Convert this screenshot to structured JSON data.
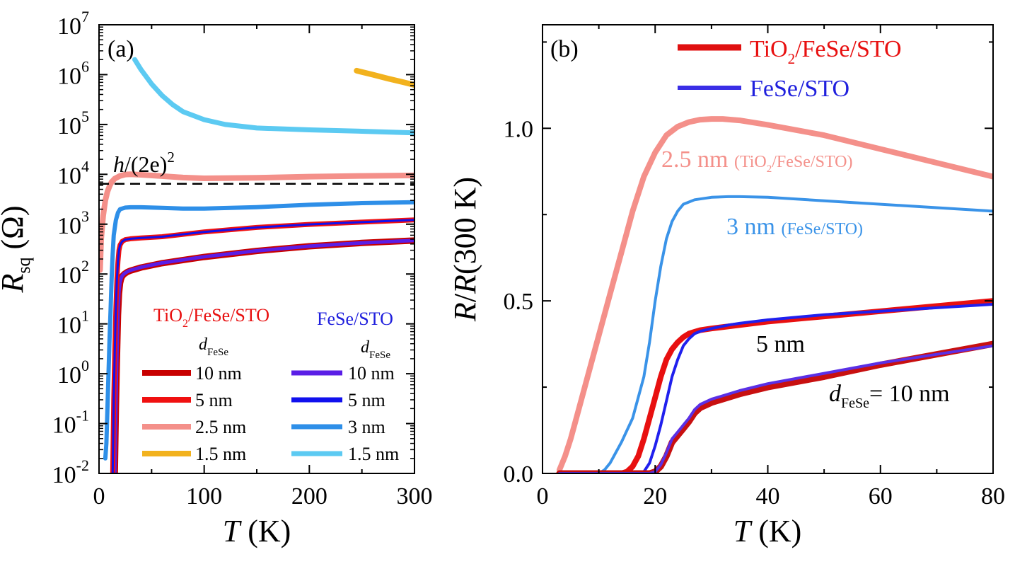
{
  "chart_data": [
    {
      "type": "line",
      "panel": "(a)",
      "xlabel": "T (K)",
      "ylabel": "R_sq (Ω)",
      "xlim": [
        0,
        300
      ],
      "ylim_log10": [
        -2,
        7
      ],
      "yscale": "log",
      "xticks": [
        0,
        100,
        200,
        300
      ],
      "yticks_exp": [
        -2,
        -1,
        0,
        1,
        2,
        3,
        4,
        5,
        6,
        7
      ],
      "reference_line": {
        "label": "h/(2e)^2",
        "value": 6450,
        "style": "dashed"
      },
      "legend": {
        "group_left_title": "TiO2/FeSe/STO",
        "group_right_title": "FeSe/STO",
        "subtitle": "d_FeSe",
        "left": [
          "10 nm",
          "5 nm",
          "2.5 nm",
          "1.5 nm"
        ],
        "right": [
          "10 nm",
          "5 nm",
          "3 nm",
          "1.5 nm"
        ]
      },
      "series": [
        {
          "name": "TiO2/FeSe/STO 10 nm",
          "color": "#c80000",
          "width": 9,
          "x": [
            15,
            16,
            17,
            18,
            19,
            20,
            21,
            22,
            24,
            27,
            30,
            40,
            60,
            100,
            150,
            200,
            250,
            300
          ],
          "y": [
            0.01,
            0.2,
            2,
            15,
            40,
            65,
            80,
            90,
            100,
            110,
            117,
            135,
            165,
            220,
            290,
            360,
            420,
            470
          ]
        },
        {
          "name": "FeSe/STO 10 nm",
          "color": "#5a1ee6",
          "width": 5,
          "x": [
            15,
            16,
            17,
            18,
            19,
            20,
            21,
            22,
            24,
            27,
            30,
            40,
            60,
            100,
            150,
            200,
            250,
            300
          ],
          "y": [
            0.01,
            0.25,
            2.5,
            17,
            45,
            68,
            82,
            92,
            102,
            112,
            119,
            137,
            167,
            222,
            292,
            362,
            422,
            472
          ]
        },
        {
          "name": "TiO2/FeSe/STO 5 nm",
          "color": "#f01010",
          "width": 7,
          "x": [
            13,
            14,
            15,
            16,
            17,
            18,
            19,
            20,
            22,
            25,
            30,
            40,
            60,
            100,
            150,
            200,
            250,
            300
          ],
          "y": [
            0.01,
            0.3,
            3,
            20,
            80,
            180,
            300,
            380,
            450,
            490,
            510,
            530,
            560,
            700,
            860,
            990,
            1100,
            1220
          ]
        },
        {
          "name": "FeSe/STO 5 nm",
          "color": "#1010ee",
          "width": 3,
          "x": [
            13,
            14,
            15,
            16,
            17,
            18,
            19,
            20,
            22,
            25,
            30,
            40,
            60,
            100,
            150,
            200,
            250,
            300
          ],
          "y": [
            0.01,
            0.3,
            3,
            20,
            80,
            180,
            300,
            380,
            450,
            490,
            510,
            530,
            560,
            700,
            860,
            990,
            1100,
            1220
          ]
        },
        {
          "name": "TiO2/FeSe/STO 2.5 nm",
          "color": "#f4908a",
          "width": 8,
          "x": [
            1,
            2,
            4,
            6,
            8,
            10,
            12,
            15,
            20,
            25,
            30,
            40,
            60,
            80,
            100,
            150,
            200,
            250,
            300
          ],
          "y": [
            120,
            500,
            1500,
            3000,
            4500,
            5800,
            7000,
            8200,
            9300,
            9900,
            10000,
            9800,
            9200,
            8600,
            8300,
            8500,
            9000,
            9300,
            9500
          ]
        },
        {
          "name": "FeSe/STO 3 nm",
          "color": "#2e8fe8",
          "width": 6,
          "x": [
            6,
            7,
            8,
            9,
            10,
            11,
            12,
            13,
            14,
            16,
            18,
            20,
            25,
            30,
            40,
            60,
            80,
            100,
            150,
            200,
            250,
            300
          ],
          "y": [
            0.02,
            0.04,
            0.2,
            1,
            5,
            20,
            80,
            250,
            600,
            1200,
            1700,
            2000,
            2150,
            2180,
            2180,
            2120,
            2050,
            2050,
            2200,
            2450,
            2650,
            2750
          ]
        },
        {
          "name": "FeSe/STO 1.5 nm",
          "color": "#5ccaf2",
          "width": 7,
          "x": [
            34,
            40,
            50,
            60,
            70,
            80,
            100,
            120,
            150,
            200,
            250,
            300
          ],
          "y": [
            2000000,
            1250000,
            650000,
            380000,
            250000,
            180000,
            125000,
            100000,
            85000,
            78000,
            73000,
            68000
          ]
        },
        {
          "name": "TiO2/FeSe/STO 1.5 nm",
          "color": "#f2b21e",
          "width": 8,
          "x": [
            245,
            260,
            275,
            290,
            300
          ],
          "y": [
            1200000,
            1000000,
            830000,
            700000,
            620000
          ]
        }
      ]
    },
    {
      "type": "line",
      "panel": "(b)",
      "xlabel": "T (K)",
      "ylabel": "R/R(300 K)",
      "xlim": [
        0,
        80
      ],
      "ylim": [
        0,
        1.3
      ],
      "xticks": [
        0,
        20,
        40,
        60,
        80
      ],
      "yticks": [
        0.0,
        0.5,
        1.0
      ],
      "legend": [
        "TiO2/FeSe/STO",
        "FeSe/STO"
      ],
      "legend_colors": [
        "#e01010",
        "#3a2ee6"
      ],
      "annotations": [
        {
          "text": "2.5 nm",
          "small": "(TiO2/FeSe/STO)"
        },
        {
          "text": "3 nm",
          "small": "(FeSe/STO)"
        },
        {
          "text": "5 nm"
        },
        {
          "text": "d_FeSe = 10 nm"
        }
      ],
      "series": [
        {
          "name": "TiO2/FeSe/STO 2.5 nm",
          "color": "#f4908a",
          "width": 8,
          "x": [
            3,
            4,
            5,
            6,
            8,
            10,
            12,
            14,
            16,
            18,
            20,
            22,
            24,
            26,
            28,
            30,
            32,
            35,
            40,
            50,
            60,
            70,
            80
          ],
          "y": [
            0.01,
            0.05,
            0.1,
            0.16,
            0.28,
            0.4,
            0.52,
            0.64,
            0.76,
            0.86,
            0.93,
            0.98,
            1.005,
            1.018,
            1.025,
            1.027,
            1.027,
            1.023,
            1.01,
            0.98,
            0.94,
            0.9,
            0.86
          ]
        },
        {
          "name": "FeSe/STO 3 nm",
          "color": "#3a93e8",
          "width": 4,
          "x": [
            3,
            10,
            11,
            12,
            14,
            16,
            18,
            19,
            20,
            21,
            22,
            23,
            24,
            25,
            27,
            30,
            33,
            35,
            40,
            50,
            60,
            70,
            80
          ],
          "y": [
            0,
            0,
            0.01,
            0.03,
            0.09,
            0.16,
            0.28,
            0.38,
            0.5,
            0.6,
            0.68,
            0.73,
            0.76,
            0.78,
            0.793,
            0.8,
            0.802,
            0.802,
            0.8,
            0.79,
            0.78,
            0.77,
            0.76
          ]
        },
        {
          "name": "TiO2/FeSe/STO 5 nm",
          "color": "#e81010",
          "width": 8,
          "x": [
            3,
            14,
            15,
            16,
            17,
            18,
            19,
            20,
            21,
            22,
            23,
            24,
            25,
            26,
            27,
            28,
            30,
            35,
            40,
            50,
            60,
            70,
            80
          ],
          "y": [
            0,
            0,
            0.005,
            0.02,
            0.05,
            0.1,
            0.16,
            0.22,
            0.28,
            0.33,
            0.36,
            0.38,
            0.395,
            0.405,
            0.41,
            0.415,
            0.42,
            0.43,
            0.44,
            0.455,
            0.47,
            0.485,
            0.5
          ]
        },
        {
          "name": "FeSe/STO 5 nm",
          "color": "#2020ee",
          "width": 4,
          "x": [
            3,
            17,
            18,
            19,
            20,
            21,
            22,
            23,
            24,
            25,
            26,
            27,
            28,
            30,
            33,
            35,
            40,
            50,
            60,
            70,
            80
          ],
          "y": [
            0,
            0,
            0.005,
            0.03,
            0.08,
            0.14,
            0.21,
            0.28,
            0.33,
            0.37,
            0.39,
            0.405,
            0.412,
            0.42,
            0.43,
            0.435,
            0.445,
            0.46,
            0.47,
            0.48,
            0.49
          ]
        },
        {
          "name": "TiO2/FeSe/STO 10 nm",
          "color": "#c81010",
          "width": 9,
          "x": [
            3,
            19,
            20,
            21,
            22,
            23,
            24,
            25,
            26,
            27,
            28,
            30,
            35,
            40,
            50,
            60,
            70,
            80
          ],
          "y": [
            0,
            0,
            0.005,
            0.02,
            0.05,
            0.09,
            0.11,
            0.13,
            0.15,
            0.175,
            0.19,
            0.205,
            0.23,
            0.25,
            0.28,
            0.315,
            0.345,
            0.375
          ]
        },
        {
          "name": "FeSe/STO 10 nm",
          "color": "#5a30e6",
          "width": 4,
          "x": [
            3,
            19,
            20,
            21,
            22,
            23,
            24,
            25,
            26,
            27,
            28,
            30,
            35,
            40,
            50,
            60,
            70,
            80
          ],
          "y": [
            0,
            0,
            0.005,
            0.025,
            0.06,
            0.1,
            0.12,
            0.14,
            0.16,
            0.185,
            0.2,
            0.215,
            0.24,
            0.26,
            0.29,
            0.32,
            0.345,
            0.37
          ]
        }
      ]
    }
  ]
}
